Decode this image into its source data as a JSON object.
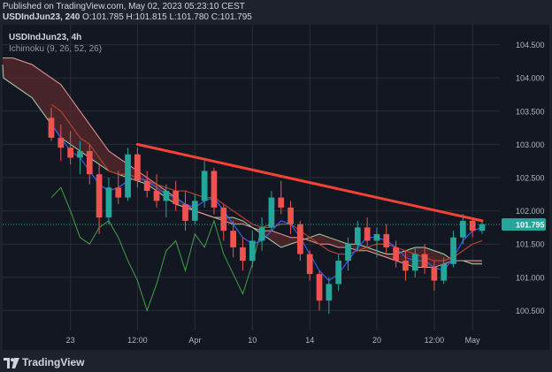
{
  "header": {
    "published_line": "Published on TradingView.com, May 02, 2023 05:23:10 CEST",
    "symbol_tf": "USDIndJun23, 240",
    "ohlc": "O:101.785 H:101.815 L:101.780 C:101.795"
  },
  "legend": {
    "symbol": "USDIndJun23, 4h",
    "indicator": "Ichimoku (9, 26, 52, 26)"
  },
  "brand": {
    "name": "TradingView"
  },
  "colors": {
    "bull": "#26a69a",
    "bear": "#ef5350",
    "tenkan": "#2962ff",
    "kijun": "#b7412b",
    "chikou": "#43a047",
    "span_a": "#a5d6a7",
    "span_b": "#ef9a9a",
    "kumo_bear": "#5a2a2e",
    "kumo_bull": "#2e4a36",
    "trendline": "#f44336",
    "price_label": "#26a69a"
  },
  "chart_data": {
    "type": "candlestick",
    "y_axis": {
      "range": [
        100.2,
        104.8
      ],
      "ticks": [
        "104.500",
        "104.000",
        "103.500",
        "103.000",
        "102.500",
        "102.000",
        "101.500",
        "101.000",
        "100.500"
      ]
    },
    "x_axis": {
      "ticks": [
        "23",
        "12:00",
        "Apr",
        "10",
        "14",
        "20",
        "12:00",
        "May"
      ]
    },
    "last_price": "101.795",
    "candles": [
      {
        "o": 103.4,
        "h": 103.55,
        "l": 103.05,
        "c": 103.1
      },
      {
        "o": 103.1,
        "h": 103.3,
        "l": 102.75,
        "c": 102.95
      },
      {
        "o": 102.95,
        "h": 103.2,
        "l": 102.7,
        "c": 102.8
      },
      {
        "o": 102.8,
        "h": 103.05,
        "l": 102.55,
        "c": 102.9
      },
      {
        "o": 102.9,
        "h": 103.0,
        "l": 102.4,
        "c": 102.55
      },
      {
        "o": 102.55,
        "h": 102.7,
        "l": 101.65,
        "c": 101.9
      },
      {
        "o": 101.9,
        "h": 102.5,
        "l": 101.8,
        "c": 102.35
      },
      {
        "o": 102.35,
        "h": 102.6,
        "l": 102.1,
        "c": 102.2
      },
      {
        "o": 102.2,
        "h": 102.95,
        "l": 102.15,
        "c": 102.85
      },
      {
        "o": 102.85,
        "h": 102.95,
        "l": 102.35,
        "c": 102.45
      },
      {
        "o": 102.45,
        "h": 102.6,
        "l": 102.2,
        "c": 102.3
      },
      {
        "o": 102.3,
        "h": 102.55,
        "l": 102.05,
        "c": 102.15
      },
      {
        "o": 102.15,
        "h": 102.4,
        "l": 101.9,
        "c": 102.3
      },
      {
        "o": 102.3,
        "h": 102.45,
        "l": 102.0,
        "c": 102.1
      },
      {
        "o": 102.1,
        "h": 102.3,
        "l": 101.7,
        "c": 101.85
      },
      {
        "o": 101.85,
        "h": 102.25,
        "l": 101.8,
        "c": 102.15
      },
      {
        "o": 102.15,
        "h": 102.75,
        "l": 102.05,
        "c": 102.6
      },
      {
        "o": 102.6,
        "h": 102.65,
        "l": 101.95,
        "c": 102.05
      },
      {
        "o": 102.05,
        "h": 102.1,
        "l": 101.55,
        "c": 101.7
      },
      {
        "o": 101.7,
        "h": 101.85,
        "l": 101.3,
        "c": 101.45
      },
      {
        "o": 101.45,
        "h": 101.6,
        "l": 101.1,
        "c": 101.25
      },
      {
        "o": 101.25,
        "h": 101.7,
        "l": 101.15,
        "c": 101.55
      },
      {
        "o": 101.55,
        "h": 101.9,
        "l": 101.4,
        "c": 101.75
      },
      {
        "o": 101.75,
        "h": 102.3,
        "l": 101.7,
        "c": 102.2
      },
      {
        "o": 102.2,
        "h": 102.45,
        "l": 101.95,
        "c": 102.05
      },
      {
        "o": 102.05,
        "h": 102.15,
        "l": 101.65,
        "c": 101.8
      },
      {
        "o": 101.8,
        "h": 101.85,
        "l": 101.25,
        "c": 101.35
      },
      {
        "o": 101.35,
        "h": 101.4,
        "l": 100.95,
        "c": 101.05
      },
      {
        "o": 101.05,
        "h": 101.1,
        "l": 100.5,
        "c": 100.65
      },
      {
        "o": 100.65,
        "h": 101.0,
        "l": 100.45,
        "c": 100.9
      },
      {
        "o": 100.9,
        "h": 101.35,
        "l": 100.8,
        "c": 101.25
      },
      {
        "o": 101.25,
        "h": 101.6,
        "l": 101.1,
        "c": 101.5
      },
      {
        "o": 101.5,
        "h": 101.85,
        "l": 101.4,
        "c": 101.75
      },
      {
        "o": 101.75,
        "h": 101.9,
        "l": 101.45,
        "c": 101.55
      },
      {
        "o": 101.55,
        "h": 101.75,
        "l": 101.3,
        "c": 101.65
      },
      {
        "o": 101.65,
        "h": 101.8,
        "l": 101.35,
        "c": 101.45
      },
      {
        "o": 101.45,
        "h": 101.55,
        "l": 101.15,
        "c": 101.25
      },
      {
        "o": 101.25,
        "h": 101.4,
        "l": 100.95,
        "c": 101.1
      },
      {
        "o": 101.1,
        "h": 101.45,
        "l": 101.0,
        "c": 101.35
      },
      {
        "o": 101.35,
        "h": 101.5,
        "l": 101.05,
        "c": 101.15
      },
      {
        "o": 101.15,
        "h": 101.25,
        "l": 100.8,
        "c": 100.95
      },
      {
        "o": 100.95,
        "h": 101.3,
        "l": 100.9,
        "c": 101.2
      },
      {
        "o": 101.2,
        "h": 101.7,
        "l": 101.15,
        "c": 101.6
      },
      {
        "o": 101.6,
        "h": 101.95,
        "l": 101.5,
        "c": 101.85
      },
      {
        "o": 101.85,
        "h": 101.9,
        "l": 101.6,
        "c": 101.7
      },
      {
        "o": 101.7,
        "h": 101.85,
        "l": 101.65,
        "c": 101.8
      }
    ],
    "tenkan": [
      103.3,
      103.1,
      102.9,
      102.8,
      102.6,
      102.4,
      102.3,
      102.35,
      102.45,
      102.5,
      102.45,
      102.35,
      102.25,
      102.2,
      102.1,
      102.05,
      102.15,
      102.2,
      102.0,
      101.8,
      101.6,
      101.5,
      101.55,
      101.7,
      101.85,
      101.8,
      101.6,
      101.35,
      101.1,
      100.95,
      101.05,
      101.25,
      101.45,
      101.6,
      101.6,
      101.55,
      101.45,
      101.3,
      101.25,
      101.25,
      101.15,
      101.1,
      101.3,
      101.55,
      101.7,
      101.75
    ],
    "kijun": [
      103.6,
      103.5,
      103.3,
      103.1,
      103.0,
      102.8,
      102.6,
      102.55,
      102.55,
      102.5,
      102.45,
      102.4,
      102.35,
      102.3,
      102.3,
      102.25,
      102.2,
      102.2,
      102.1,
      102.0,
      101.9,
      101.8,
      101.75,
      101.75,
      101.8,
      101.8,
      101.7,
      101.6,
      101.5,
      101.4,
      101.35,
      101.35,
      101.4,
      101.45,
      101.5,
      101.5,
      101.45,
      101.4,
      101.35,
      101.3,
      101.25,
      101.25,
      101.3,
      101.4,
      101.5,
      101.55
    ],
    "chikou": [
      102.2,
      102.35,
      102.0,
      101.6,
      101.5,
      101.75,
      101.85,
      101.6,
      101.25,
      100.95,
      100.5,
      100.9,
      101.4,
      101.55,
      101.1,
      101.65,
      101.45,
      101.85,
      101.35,
      101.05,
      100.75,
      101.2,
      101.75,
      101.8
    ],
    "span_a": [
      104.2,
      104.0,
      103.9,
      103.8,
      103.7,
      103.5,
      103.3,
      103.1,
      103.0,
      102.9,
      102.8,
      102.7,
      102.6,
      102.55,
      102.5,
      102.45,
      102.4,
      102.3,
      102.2,
      102.1,
      102.05,
      102.0,
      101.95,
      101.9,
      101.9,
      101.9,
      101.85,
      101.75,
      101.65,
      101.55,
      101.45,
      101.5,
      101.55,
      101.6,
      101.65,
      101.6,
      101.55,
      101.5,
      101.5,
      101.45,
      101.4,
      101.35,
      101.35,
      101.4,
      101.45,
      101.45,
      101.4,
      101.35,
      101.25,
      101.25,
      101.2,
      101.2
    ],
    "span_b": [
      104.3,
      104.3,
      104.3,
      104.25,
      104.2,
      104.1,
      104.0,
      103.9,
      103.7,
      103.5,
      103.3,
      103.1,
      102.9,
      102.8,
      102.7,
      102.6,
      102.5,
      102.4,
      102.3,
      102.2,
      102.1,
      102.0,
      101.95,
      101.9,
      101.85,
      101.8,
      101.8,
      101.75,
      101.7,
      101.7,
      101.65,
      101.6,
      101.6,
      101.55,
      101.5,
      101.5,
      101.45,
      101.45,
      101.4,
      101.4,
      101.35,
      101.3,
      101.25,
      101.2,
      101.15,
      101.15,
      101.15,
      101.2,
      101.25,
      101.25,
      101.25,
      101.25
    ],
    "trendline": [
      {
        "i": 9,
        "y": 103.0
      },
      {
        "i": 45,
        "y": 101.85
      }
    ]
  }
}
